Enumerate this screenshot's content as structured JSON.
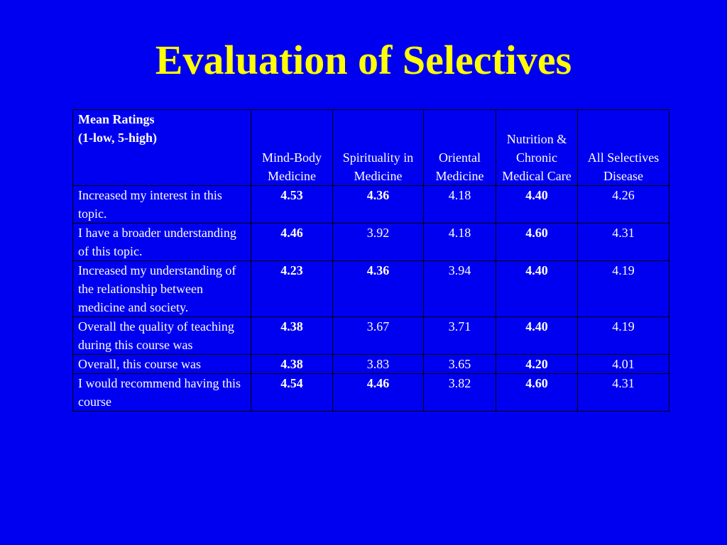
{
  "title": "Evaluation of Selectives",
  "table": {
    "corner_line1": "Mean Ratings",
    "corner_line2": "(1-low, 5-high)",
    "columns": [
      "Mind-Body Medicine",
      "Spirituality in Medicine",
      "Oriental Medicine",
      "Nutrition & Chronic Medical Care",
      "All Selectives Disease"
    ],
    "rows": [
      {
        "label": "Increased my interest in this topic.",
        "values": [
          "4.53",
          "4.36",
          "4.18",
          "4.40",
          "4.26"
        ],
        "bold": [
          true,
          true,
          false,
          true,
          false
        ]
      },
      {
        "label": "I have a broader understanding of this topic.",
        "values": [
          "4.46",
          "3.92",
          "4.18",
          "4.60",
          "4.31"
        ],
        "bold": [
          true,
          false,
          false,
          true,
          false
        ]
      },
      {
        "label": "Increased my understanding of the relationship between medicine and society.",
        "values": [
          "4.23",
          "4.36",
          "3.94",
          "4.40",
          "4.19"
        ],
        "bold": [
          true,
          true,
          false,
          true,
          false
        ]
      },
      {
        "label": "Overall the quality of teaching during this course was",
        "values": [
          "4.38",
          "3.67",
          "3.71",
          "4.40",
          "4.19"
        ],
        "bold": [
          true,
          false,
          false,
          true,
          false
        ]
      },
      {
        "label": "Overall, this course was",
        "values": [
          "4.38",
          "3.83",
          "3.65",
          "4.20",
          "4.01"
        ],
        "bold": [
          true,
          false,
          false,
          true,
          false
        ]
      },
      {
        "label": "I would recommend having this course",
        "values": [
          "4.54",
          "4.46",
          "3.82",
          "4.60",
          "4.31"
        ],
        "bold": [
          true,
          true,
          false,
          true,
          false
        ]
      }
    ]
  },
  "colors": {
    "background": "#0000f0",
    "title": "#ffff00",
    "table_text": "#ffffff",
    "grid": "#000000"
  }
}
